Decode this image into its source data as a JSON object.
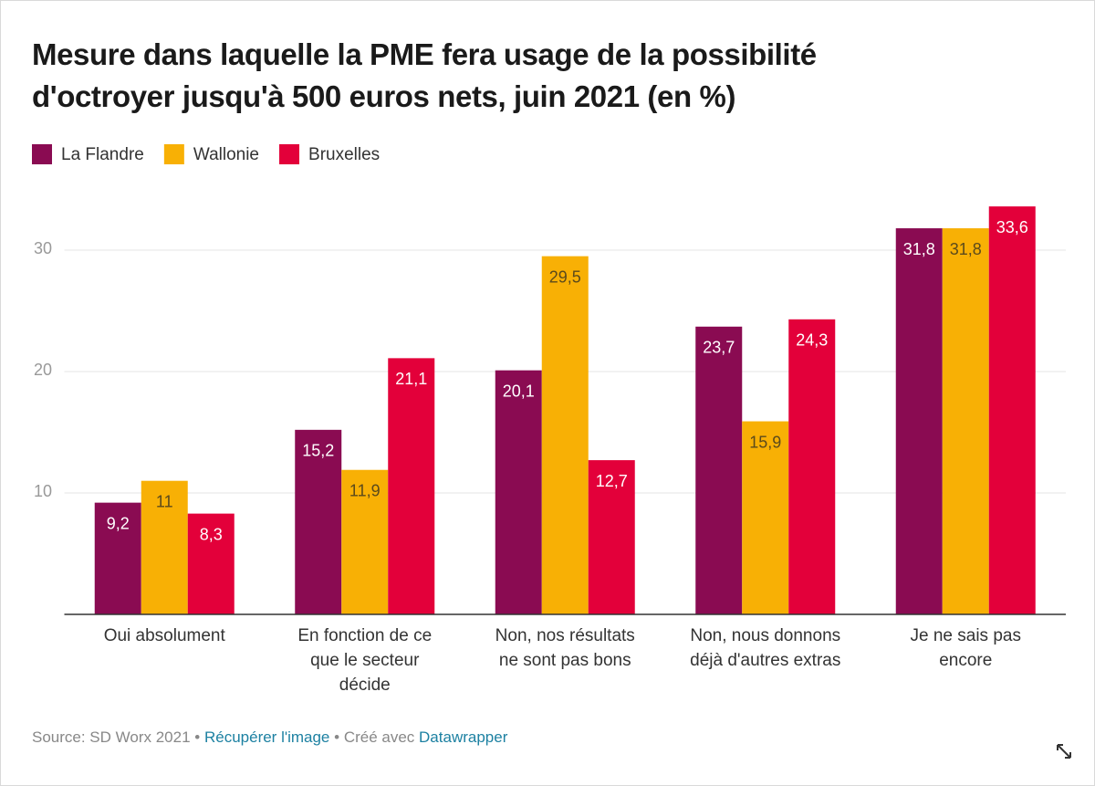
{
  "chart_data": {
    "type": "bar",
    "title": [
      "Mesure dans laquelle la PME fera usage de la possibilité",
      "d'octroyer jusqu'à 500 euros nets, juin 2021 (en %)"
    ],
    "categories": [
      "Oui absolument",
      "En fonction de ce que le secteur décide",
      "Non, nos résultats ne sont pas bons",
      "Non, nous donnons déjà d'autres extras",
      "Je ne sais pas encore"
    ],
    "series": [
      {
        "name": "La Flandre",
        "color": "#8a0b52",
        "values": [
          9.2,
          15.2,
          20.1,
          23.7,
          31.8
        ],
        "value_labels": [
          "9,2",
          "15,2",
          "20,1",
          "23,7",
          "31,8"
        ]
      },
      {
        "name": "Wallonie",
        "color": "#f8b005",
        "values": [
          11,
          11.9,
          29.5,
          15.9,
          31.8
        ],
        "value_labels": [
          "11",
          "11,9",
          "29,5",
          "15,9",
          "31,8"
        ]
      },
      {
        "name": "Bruxelles",
        "color": "#e3003a",
        "values": [
          8.3,
          21.1,
          12.7,
          24.3,
          33.6
        ],
        "value_labels": [
          "8,3",
          "21,1",
          "12,7",
          "24,3",
          "33,6"
        ]
      }
    ],
    "ylim": [
      0,
      35
    ],
    "yticks": [
      10,
      20,
      30
    ],
    "grid": true,
    "footer": {
      "source": "Source: SD Worx 2021",
      "separator": "•",
      "link": "Récupérer l'image",
      "credit": "Créé avec",
      "credit_link": "Datawrapper"
    }
  }
}
